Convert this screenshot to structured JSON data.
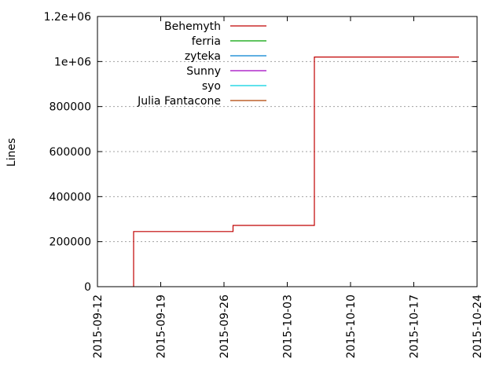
{
  "chart_data": {
    "type": "line",
    "title": "",
    "xlabel": "",
    "ylabel": "Lines",
    "xlim": [
      "2015-09-12",
      "2015-10-24"
    ],
    "ylim": [
      0,
      1200000
    ],
    "grid": {
      "y": true,
      "x": false
    },
    "legend_position": "top-left",
    "x_ticks": [
      "2015-09-12",
      "2015-09-19",
      "2015-09-26",
      "2015-10-03",
      "2015-10-10",
      "2015-10-17",
      "2015-10-24"
    ],
    "y_ticks": [
      0,
      200000,
      400000,
      600000,
      800000,
      1000000,
      1200000
    ],
    "y_tick_labels": [
      "0",
      "200000",
      "400000",
      "600000",
      "800000",
      "1e+06",
      "1.2e+06"
    ],
    "series": [
      {
        "name": "Behemyth",
        "color": "#c00000",
        "points": [
          [
            "2015-09-16",
            0
          ],
          [
            "2015-09-16",
            245000
          ],
          [
            "2015-09-27",
            245000
          ],
          [
            "2015-09-27",
            272000
          ],
          [
            "2015-10-06",
            272000
          ],
          [
            "2015-10-06",
            460000
          ],
          [
            "2015-10-06",
            820000
          ],
          [
            "2015-10-06",
            1020000
          ],
          [
            "2015-10-22",
            1020000
          ]
        ]
      },
      {
        "name": "ferria",
        "color": "#00a000",
        "points": []
      },
      {
        "name": "zyteka",
        "color": "#0080d0",
        "points": []
      },
      {
        "name": "Sunny",
        "color": "#a000c0",
        "points": []
      },
      {
        "name": "syo",
        "color": "#00d0e0",
        "points": []
      },
      {
        "name": "Julia Fantacone",
        "color": "#b04000",
        "points": []
      }
    ]
  }
}
